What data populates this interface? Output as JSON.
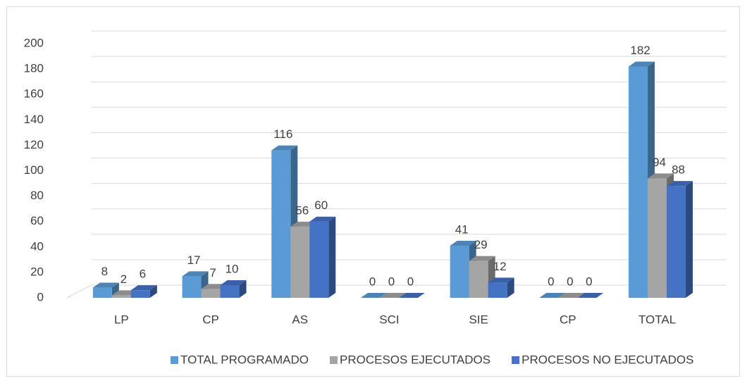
{
  "chart_data": {
    "type": "bar3d",
    "categories": [
      "LP",
      "CP",
      "AS",
      "SCI",
      "SIE",
      "CP",
      "TOTAL"
    ],
    "series": [
      {
        "name": "TOTAL PROGRAMADO",
        "color": "#5b9bd5",
        "values": [
          8,
          17,
          116,
          0,
          41,
          0,
          182
        ]
      },
      {
        "name": "PROCESOS EJECUTADOS",
        "color": "#a5a5a5",
        "values": [
          2,
          7,
          56,
          0,
          29,
          0,
          94
        ]
      },
      {
        "name": "PROCESOS NO EJECUTADOS",
        "color": "#4472c4",
        "values": [
          6,
          10,
          60,
          0,
          12,
          0,
          88
        ]
      }
    ],
    "ylim": [
      0,
      200
    ],
    "yticks": [
      0,
      20,
      40,
      60,
      80,
      100,
      120,
      140,
      160,
      180,
      200
    ],
    "grid": true,
    "legend": "bottom"
  }
}
